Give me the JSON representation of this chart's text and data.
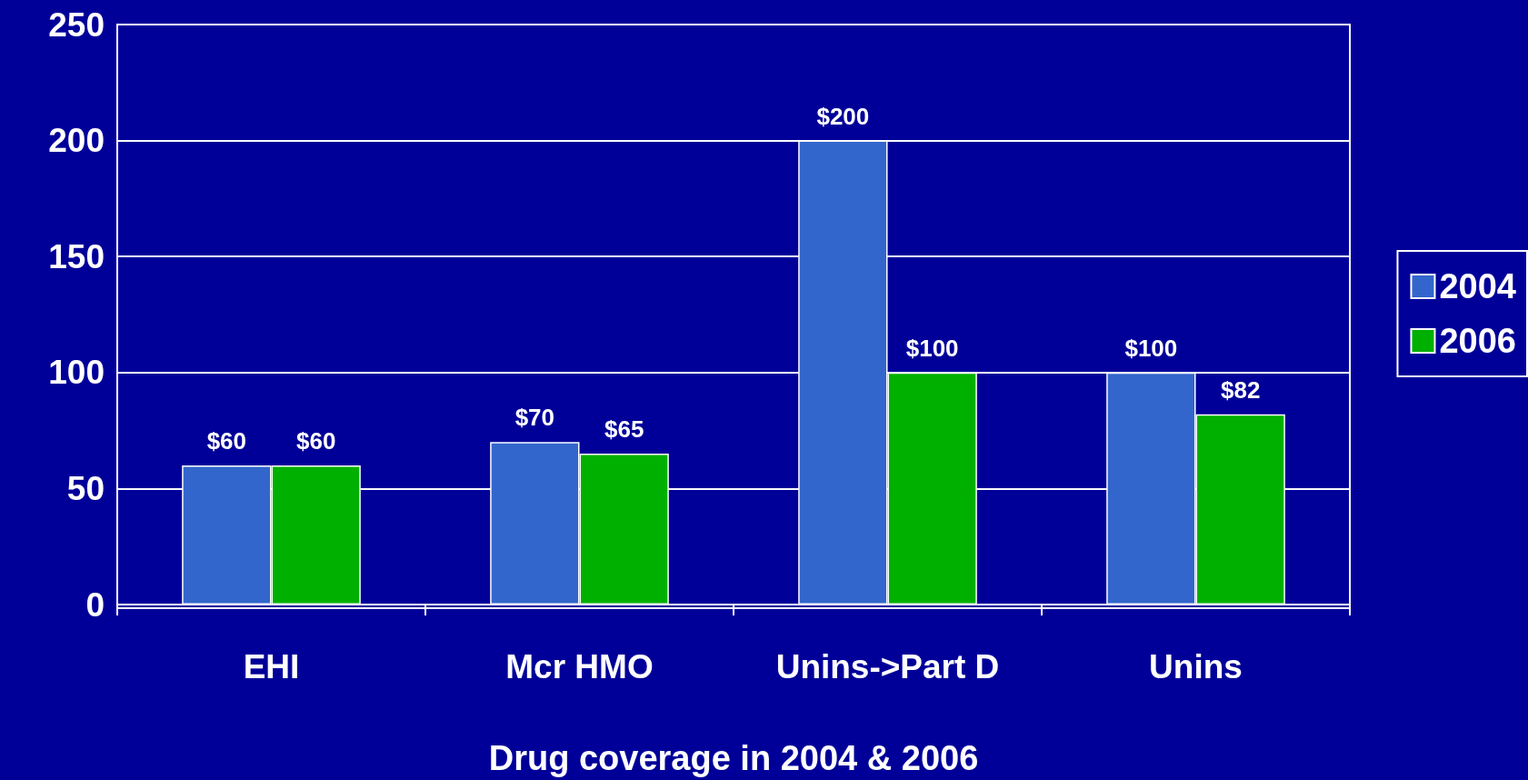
{
  "chart_data": {
    "type": "bar",
    "xlabel": "Drug coverage in 2004 & 2006",
    "categories": [
      "EHI",
      "Mcr HMO",
      "Unins->Part D",
      "Unins"
    ],
    "series": [
      {
        "name": "2004",
        "color": "#3366cc",
        "values": [
          60,
          70,
          200,
          100
        ],
        "value_labels": [
          "$60",
          "$70",
          "$200",
          "$100"
        ]
      },
      {
        "name": "2006",
        "color": "#00b000",
        "values": [
          60,
          65,
          100,
          82
        ],
        "value_labels": [
          "$60",
          "$65",
          "$100",
          "$82"
        ]
      }
    ],
    "ylim": [
      0,
      250
    ],
    "yticks": [
      0,
      50,
      100,
      150,
      200,
      250
    ],
    "grid": "y",
    "legend": "right"
  }
}
